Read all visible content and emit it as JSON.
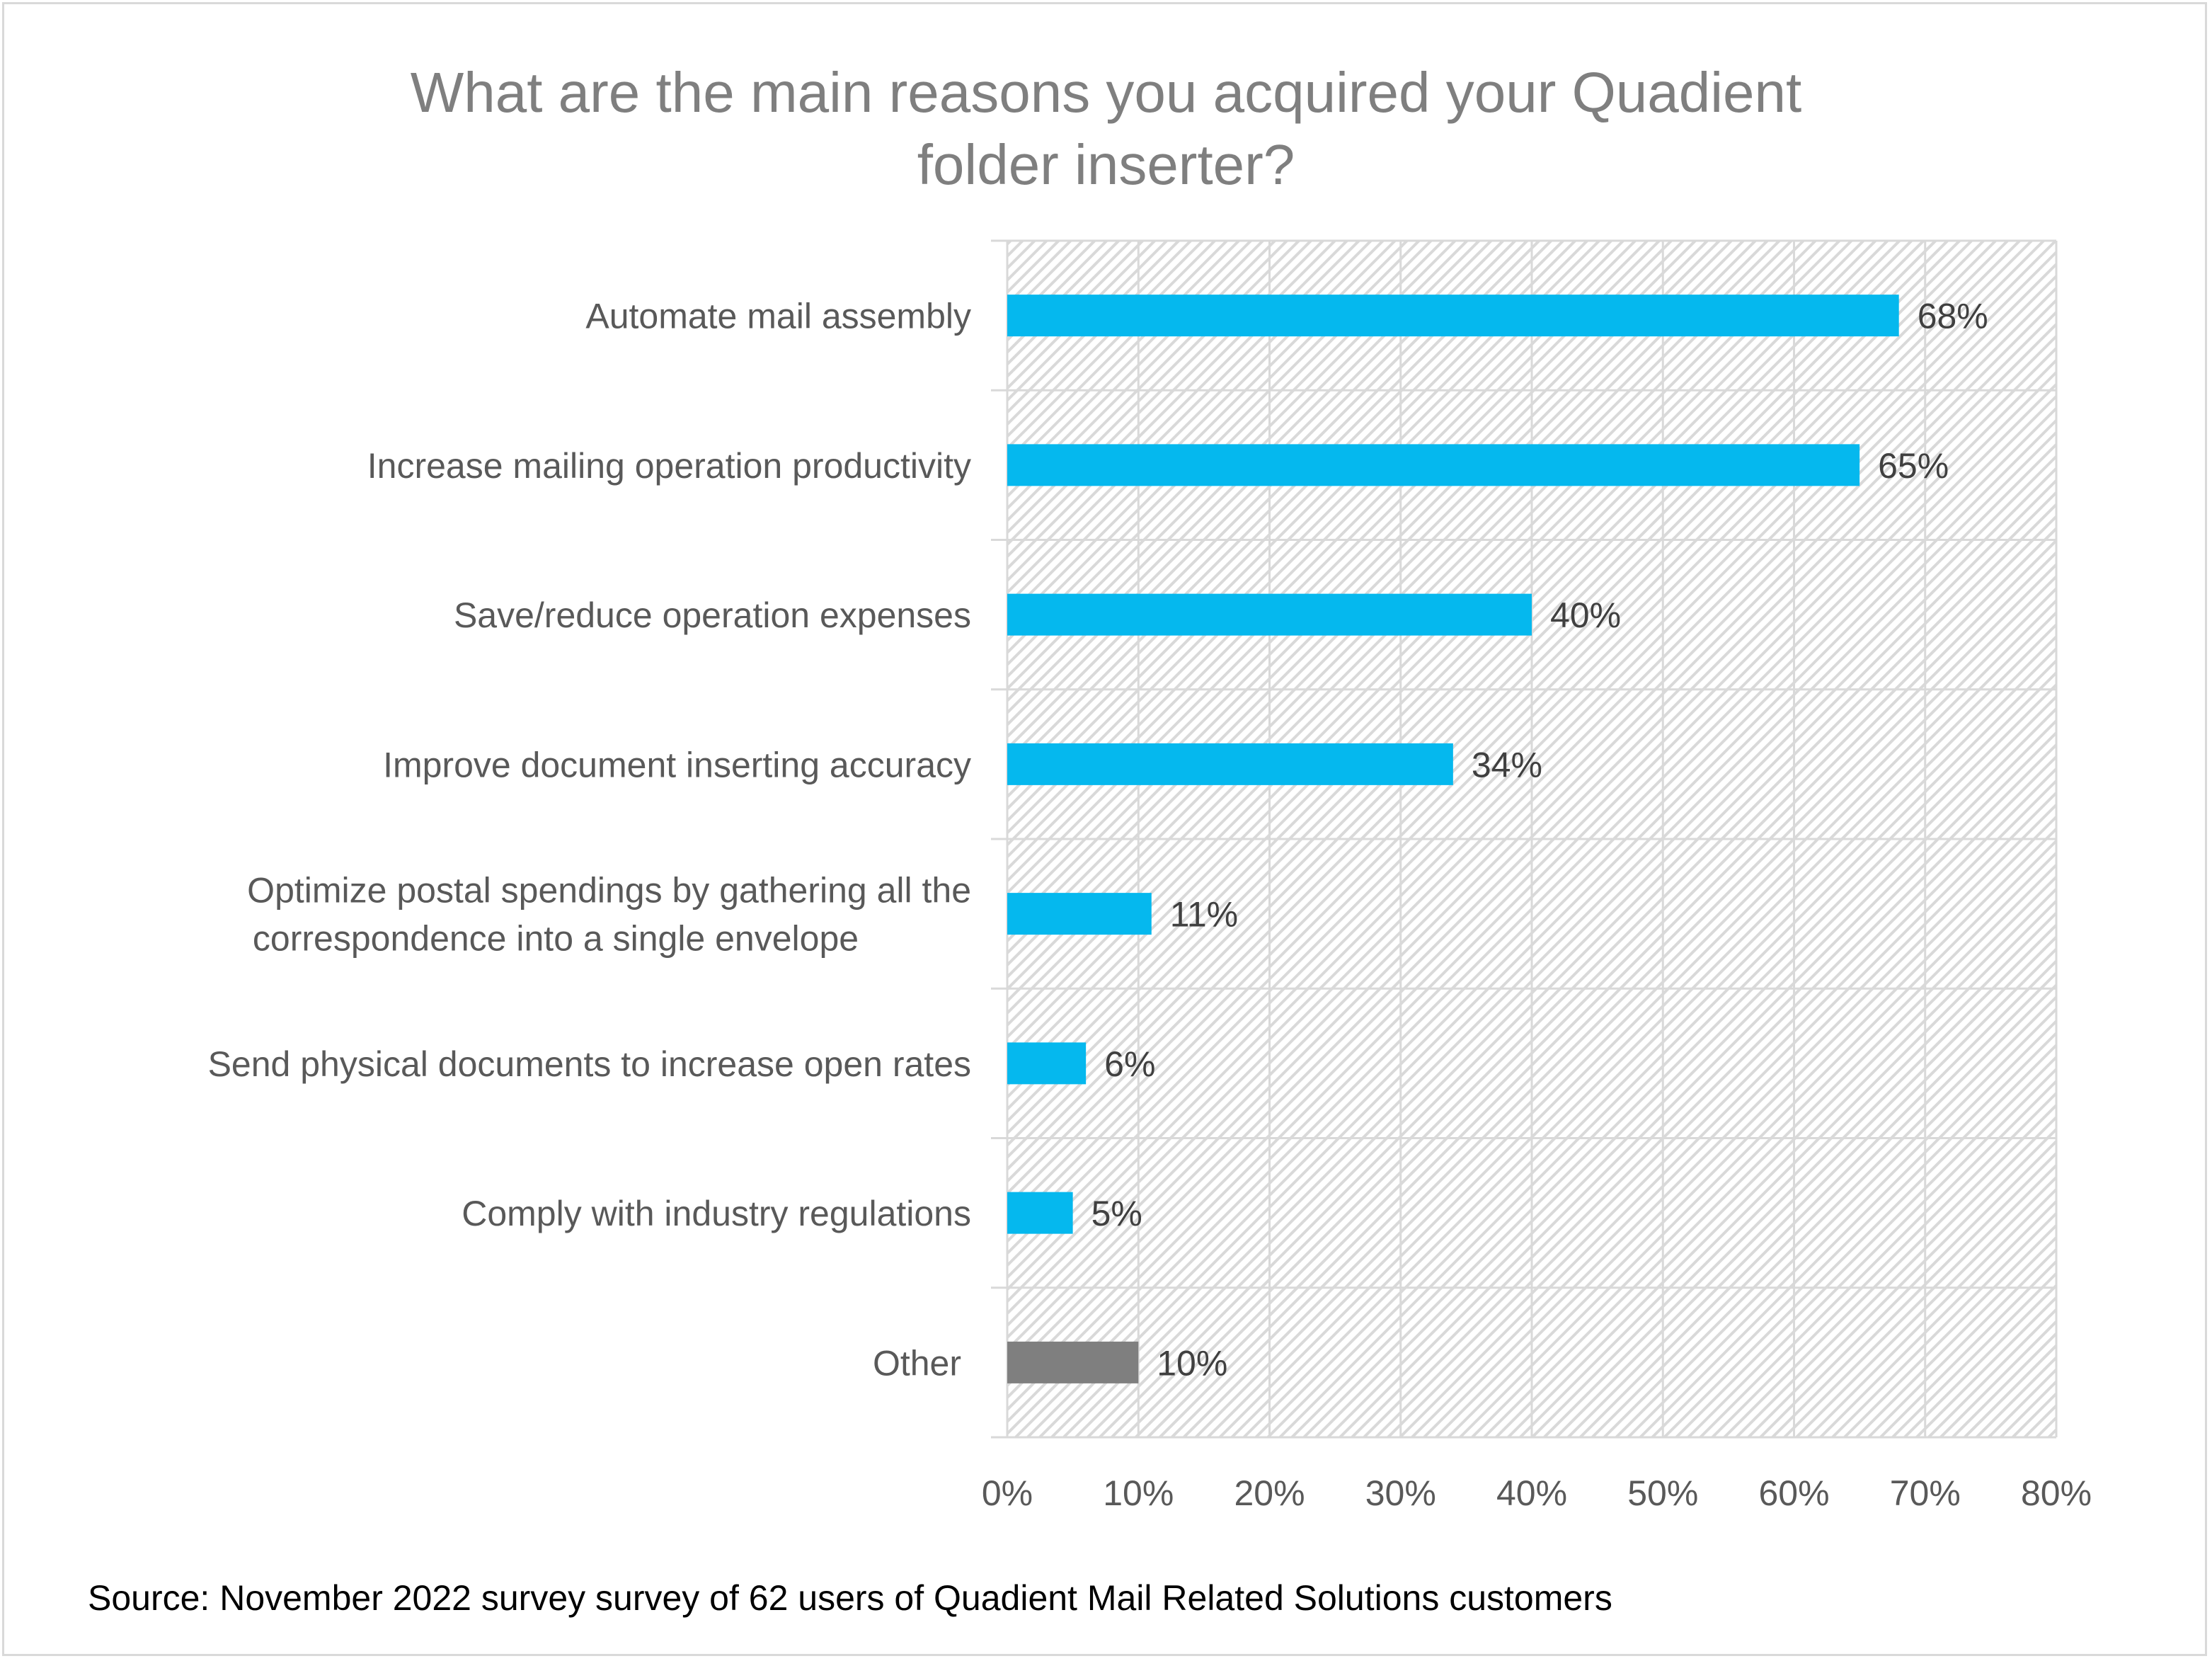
{
  "chart_data": {
    "type": "bar",
    "orientation": "horizontal",
    "title": "What are the main reasons you acquired your Quadient folder inserter?",
    "title_lines": [
      "What are the main reasons you acquired your Quadient",
      "folder inserter?"
    ],
    "categories": [
      [
        "Automate mail assembly"
      ],
      [
        "Increase mailing operation productivity"
      ],
      [
        "Save/reduce operation expenses"
      ],
      [
        "Improve document inserting accuracy"
      ],
      [
        "Optimize postal spendings by gathering all the",
        "correspondence into a single envelope"
      ],
      [
        "Send physical documents to increase open rates"
      ],
      [
        "Comply with industry regulations"
      ],
      [
        "Other"
      ]
    ],
    "values": [
      68,
      65,
      40,
      34,
      11,
      6,
      5,
      10
    ],
    "data_labels": [
      "68%",
      "65%",
      "40%",
      "34%",
      "11%",
      "6%",
      "5%",
      "10%"
    ],
    "bar_colors": [
      "#05b8ee",
      "#05b8ee",
      "#05b8ee",
      "#05b8ee",
      "#05b8ee",
      "#05b8ee",
      "#05b8ee",
      "#7f7f7f"
    ],
    "xlim": [
      0,
      80
    ],
    "xticks": [
      0,
      10,
      20,
      30,
      40,
      50,
      60,
      70,
      80
    ],
    "xtick_labels": [
      "0%",
      "10%",
      "20%",
      "30%",
      "40%",
      "50%",
      "60%",
      "70%",
      "80%"
    ],
    "xlabel": "",
    "ylabel": "",
    "grid": true
  },
  "source": "Source: November 2022 survey  survey of 62 users of Quadient Mail Related Solutions customers"
}
